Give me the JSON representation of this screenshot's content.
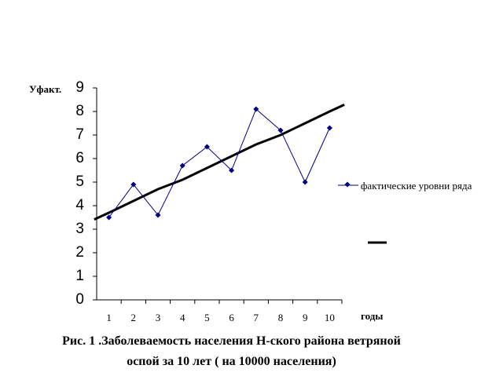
{
  "chart_data": {
    "type": "line",
    "title": "Рис. 1 .Заболеваемость населения Н-ского района ветряной оспой за 10 лет ( на 10000 населения)",
    "y_label": "Уфакт.",
    "x_label": "годы",
    "categories": [
      "1",
      "2",
      "3",
      "4",
      "5",
      "6",
      "7",
      "8",
      "9",
      "10"
    ],
    "series": [
      {
        "name": "фактические уровни ряда",
        "color": "#000080",
        "values": [
          3.5,
          4.9,
          3.6,
          5.7,
          6.5,
          5.5,
          8.1,
          7.2,
          5.0,
          7.3
        ]
      },
      {
        "color": "#000000",
        "values": [
          3.7,
          4.2,
          4.7,
          5.1,
          5.6,
          6.1,
          6.6,
          7.0,
          7.5,
          8.0
        ]
      }
    ],
    "ylim": [
      0,
      9
    ],
    "yticks": [
      0,
      1,
      2,
      3,
      4,
      5,
      6,
      7,
      8,
      9
    ]
  }
}
